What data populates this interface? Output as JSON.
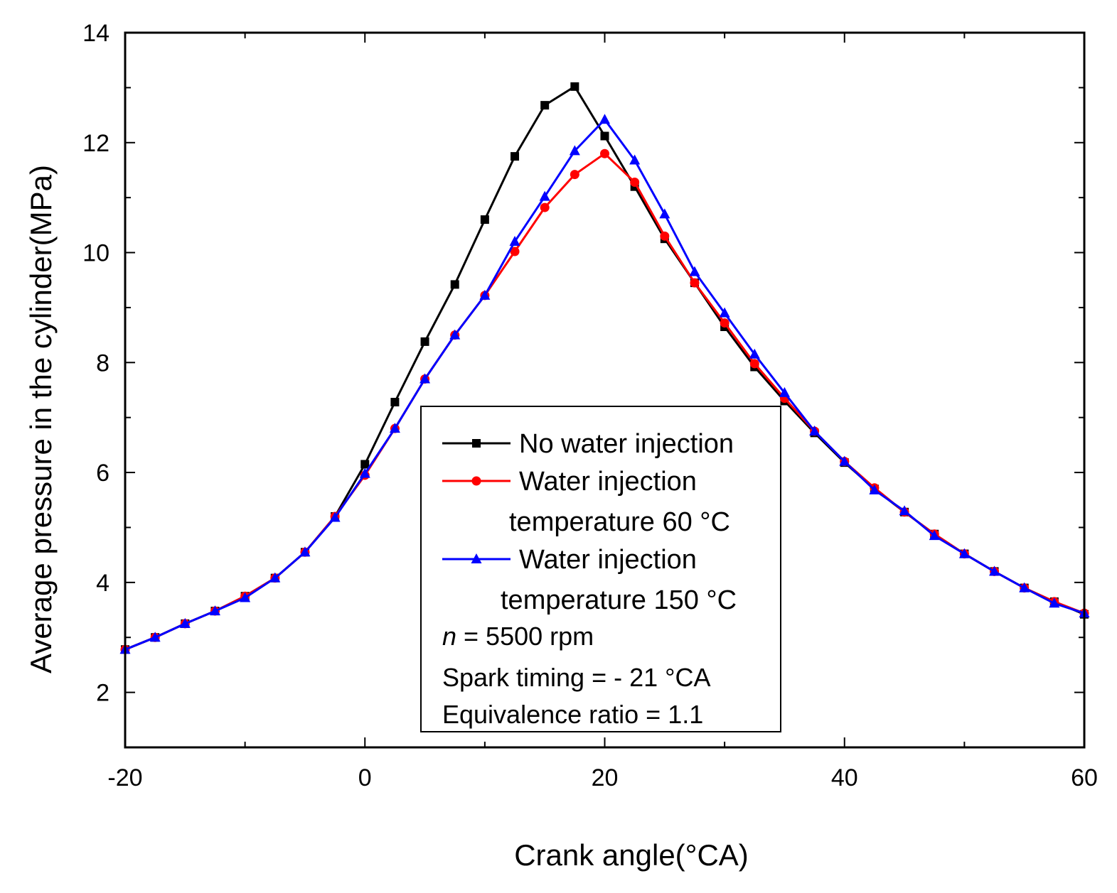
{
  "chart_data": {
    "type": "line",
    "xlabel": "Crank angle(°CA)",
    "ylabel": "Average pressure in the cylinder(MPa)",
    "xlim": [
      -20,
      60
    ],
    "ylim": [
      1,
      14
    ],
    "x_ticks": [
      -20,
      0,
      20,
      40,
      60
    ],
    "y_ticks": [
      2,
      4,
      6,
      8,
      10,
      12,
      14
    ],
    "x": [
      -20,
      -17.5,
      -15,
      -12.5,
      -10,
      -7.5,
      -5,
      -2.5,
      0,
      2.5,
      5,
      7.5,
      10,
      12.5,
      15,
      17.5,
      20,
      22.5,
      25,
      27.5,
      30,
      32.5,
      35,
      37.5,
      40,
      42.5,
      45,
      47.5,
      50,
      52.5,
      55,
      57.5,
      60
    ],
    "series": [
      {
        "name": "No water injection",
        "color": "#000000",
        "marker": "square",
        "values": [
          2.78,
          3.0,
          3.25,
          3.48,
          3.75,
          4.08,
          4.55,
          5.2,
          6.15,
          7.28,
          8.38,
          9.42,
          10.6,
          11.75,
          12.68,
          13.02,
          12.12,
          11.2,
          10.25,
          9.45,
          8.65,
          7.92,
          7.3,
          6.72,
          6.18,
          5.7,
          5.28,
          4.88,
          4.52,
          4.2,
          3.9,
          3.65,
          3.42
        ]
      },
      {
        "name": "Water injection temperature 60 °C",
        "color": "#ff0000",
        "marker": "circle",
        "values": [
          2.78,
          3.0,
          3.25,
          3.48,
          3.75,
          4.08,
          4.55,
          5.2,
          5.95,
          6.8,
          7.7,
          8.5,
          9.22,
          10.02,
          10.82,
          11.42,
          11.8,
          11.28,
          10.3,
          9.45,
          8.72,
          7.98,
          7.35,
          6.75,
          6.2,
          5.72,
          5.28,
          4.88,
          4.52,
          4.2,
          3.9,
          3.65,
          3.44
        ]
      },
      {
        "name": "Water injection temperature 150 °C",
        "color": "#0000ff",
        "marker": "triangle",
        "values": [
          2.78,
          3.0,
          3.25,
          3.48,
          3.72,
          4.08,
          4.55,
          5.18,
          5.98,
          6.8,
          7.7,
          8.5,
          9.22,
          10.2,
          11.02,
          11.85,
          12.42,
          11.68,
          10.7,
          9.65,
          8.9,
          8.15,
          7.45,
          6.75,
          6.2,
          5.68,
          5.3,
          4.85,
          4.52,
          4.2,
          3.9,
          3.62,
          3.44
        ]
      }
    ],
    "legend": {
      "placement": "center-bottom",
      "entries": [
        {
          "line1": "No water injection",
          "line2": ""
        },
        {
          "line1": "Water injection",
          "line2": "temperature 60 °C"
        },
        {
          "line1": "Water injection",
          "line2": "temperature 150 °C"
        }
      ],
      "notes": {
        "rpm_symbol": "n",
        "rpm_value": " = 5500 rpm",
        "spark": "Spark timing = - 21 °CA",
        "equivalence": "Equivalence ratio = 1.1"
      }
    }
  }
}
